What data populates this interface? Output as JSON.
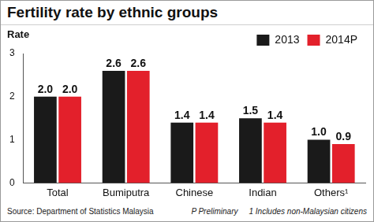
{
  "chart_data": {
    "type": "bar",
    "title": "Fertility rate by ethnic groups",
    "y_label": "Rate",
    "categories": [
      "Total",
      "Bumiputra",
      "Chinese",
      "Indian",
      "Others¹"
    ],
    "series": [
      {
        "name": "2013",
        "color": "#1a1a1a",
        "values": [
          2.0,
          2.6,
          1.4,
          1.5,
          1.0
        ],
        "value_labels": [
          "2.0",
          "2.6",
          "1.4",
          "1.5",
          "1.0"
        ]
      },
      {
        "name": "2014P",
        "color": "#e3202b",
        "values": [
          2.0,
          2.6,
          1.4,
          1.4,
          0.9
        ],
        "value_labels": [
          "2.0",
          "2.6",
          "1.4",
          "1.4",
          "0.9"
        ]
      }
    ],
    "ylim": [
      0,
      3
    ],
    "yticks": [
      0,
      1,
      2,
      3
    ],
    "grid": false,
    "legend": "top-right",
    "data_labels": true,
    "source": "Source: Department of Statistics Malaysia",
    "notes": [
      "P Preliminary",
      "1 Includes non-Malaysian citizens"
    ]
  }
}
